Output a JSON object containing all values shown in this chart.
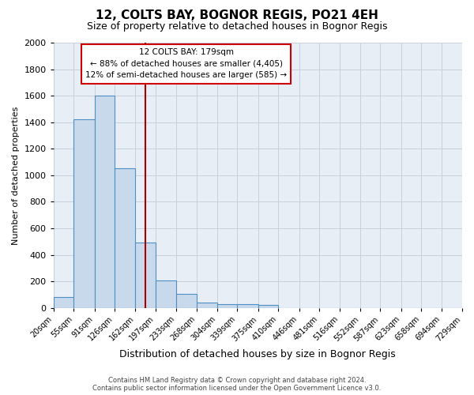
{
  "title": "12, COLTS BAY, BOGNOR REGIS, PO21 4EH",
  "subtitle": "Size of property relative to detached houses in Bognor Regis",
  "xlabel": "Distribution of detached houses by size in Bognor Regis",
  "ylabel": "Number of detached properties",
  "footer1": "Contains HM Land Registry data © Crown copyright and database right 2024.",
  "footer2": "Contains public sector information licensed under the Open Government Licence v3.0.",
  "bin_edges": [
    20,
    55,
    91,
    126,
    162,
    197,
    233,
    268,
    304,
    339,
    375,
    410,
    446,
    481,
    516,
    552,
    587,
    623,
    658,
    694,
    729
  ],
  "bar_heights": [
    80,
    1420,
    1600,
    1050,
    490,
    205,
    105,
    40,
    30,
    25,
    20,
    0,
    0,
    0,
    0,
    0,
    0,
    0,
    0,
    0
  ],
  "bar_color": "#c9d9ec",
  "bar_edge_color": "#4f90c4",
  "grid_color": "#c8d0dc",
  "background_color": "#e8eef5",
  "property_size": 179,
  "annotation_text_line1": "12 COLTS BAY: 179sqm",
  "annotation_text_line2": "← 88% of detached houses are smaller (4,405)",
  "annotation_text_line3": "12% of semi-detached houses are larger (585) →",
  "annotation_box_facecolor": "white",
  "annotation_box_edgecolor": "#cc0000",
  "vline_color": "#aa0000",
  "ylim": [
    0,
    2000
  ],
  "title_fontsize": 11,
  "subtitle_fontsize": 9,
  "tick_labels": [
    "20sqm",
    "55sqm",
    "91sqm",
    "126sqm",
    "162sqm",
    "197sqm",
    "233sqm",
    "268sqm",
    "304sqm",
    "339sqm",
    "375sqm",
    "410sqm",
    "446sqm",
    "481sqm",
    "516sqm",
    "552sqm",
    "587sqm",
    "623sqm",
    "658sqm",
    "694sqm",
    "729sqm"
  ]
}
